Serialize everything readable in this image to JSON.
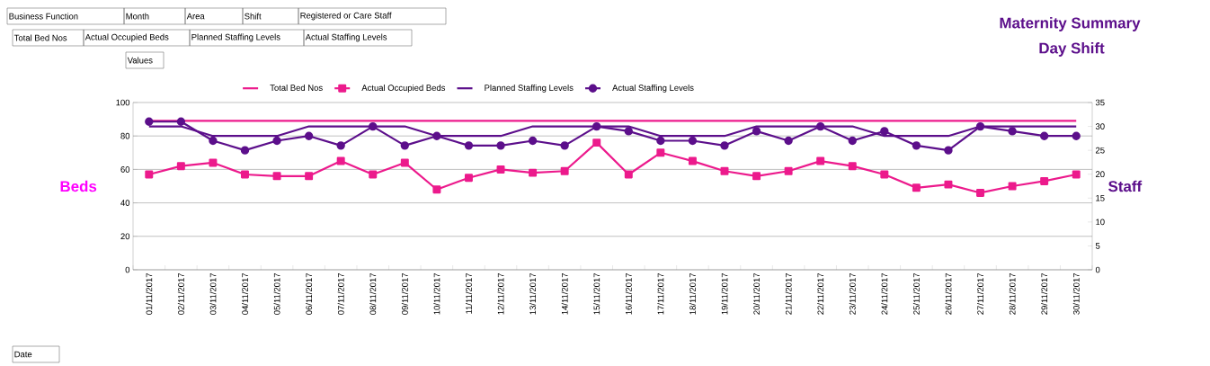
{
  "chart_data": {
    "type": "line",
    "title": "Maternity Summary",
    "subtitle": "Day Shift",
    "ylabel": "Beds",
    "y2label": "Staff",
    "annotations": [
      "Business Function",
      "Month",
      "Area",
      "Shift",
      "Registered or Care Staff",
      "Total Bed Nos",
      "Actual Occupied Beds",
      "Planned Staffing Levels",
      "Actual Staffing Levels",
      "Values",
      "Date"
    ],
    "categories": [
      "01/11/2017",
      "02/11/2017",
      "03/11/2017",
      "04/11/2017",
      "05/11/2017",
      "06/11/2017",
      "07/11/2017",
      "08/11/2017",
      "09/11/2017",
      "10/11/2017",
      "11/11/2017",
      "12/11/2017",
      "13/11/2017",
      "14/11/2017",
      "15/11/2017",
      "16/11/2017",
      "17/11/2017",
      "18/11/2017",
      "19/11/2017",
      "20/11/2017",
      "21/11/2017",
      "22/11/2017",
      "23/11/2017",
      "24/11/2017",
      "25/11/2017",
      "26/11/2017",
      "27/11/2017",
      "28/11/2017",
      "29/11/2017",
      "30/11/2017"
    ],
    "series": [
      {
        "name": "Total Bed Nos",
        "color": "#ec1a8c",
        "marker": "none",
        "values": [
          89,
          89,
          89,
          89,
          89,
          89,
          89,
          89,
          89,
          89,
          89,
          89,
          89,
          89,
          89,
          89,
          89,
          89,
          89,
          89,
          89,
          89,
          89,
          89,
          89,
          89,
          89,
          89,
          89,
          89
        ]
      },
      {
        "name": "Actual Occupied Beds",
        "color": "#ec1a8c",
        "marker": "square",
        "values": [
          57,
          62,
          64,
          57,
          56,
          56,
          65,
          57,
          64,
          48,
          55,
          60,
          58,
          59,
          76,
          57,
          70,
          65,
          59,
          56,
          59,
          65,
          62,
          57,
          49,
          51,
          46,
          50,
          53,
          57
        ]
      },
      {
        "name": "Planned Staffing Levels",
        "color": "#5c0f8b",
        "marker": "none",
        "axis": "y2",
        "values": [
          30,
          30,
          28,
          28,
          28,
          30,
          30,
          30,
          30,
          28,
          28,
          28,
          30,
          30,
          30,
          30,
          28,
          28,
          28,
          30,
          30,
          30,
          30,
          28,
          28,
          28,
          30,
          30,
          30,
          30
        ]
      },
      {
        "name": "Actual Staffing Levels",
        "color": "#5c0f8b",
        "marker": "circle",
        "axis": "y2",
        "values": [
          31,
          31,
          27,
          25,
          27,
          28,
          26,
          30,
          26,
          28,
          26,
          26,
          27,
          26,
          30,
          29,
          27,
          27,
          26,
          29,
          27,
          30,
          27,
          29,
          26,
          25,
          30,
          29,
          28,
          28
        ]
      }
    ],
    "ylim": [
      0,
      100
    ],
    "yticks": [
      0,
      20,
      40,
      60,
      80,
      100
    ],
    "y2lim": [
      0,
      35
    ],
    "y2ticks": [
      0,
      5,
      10,
      15,
      20,
      25,
      30,
      35
    ],
    "grid": "y",
    "legend": "top",
    "line_style": "solid"
  }
}
